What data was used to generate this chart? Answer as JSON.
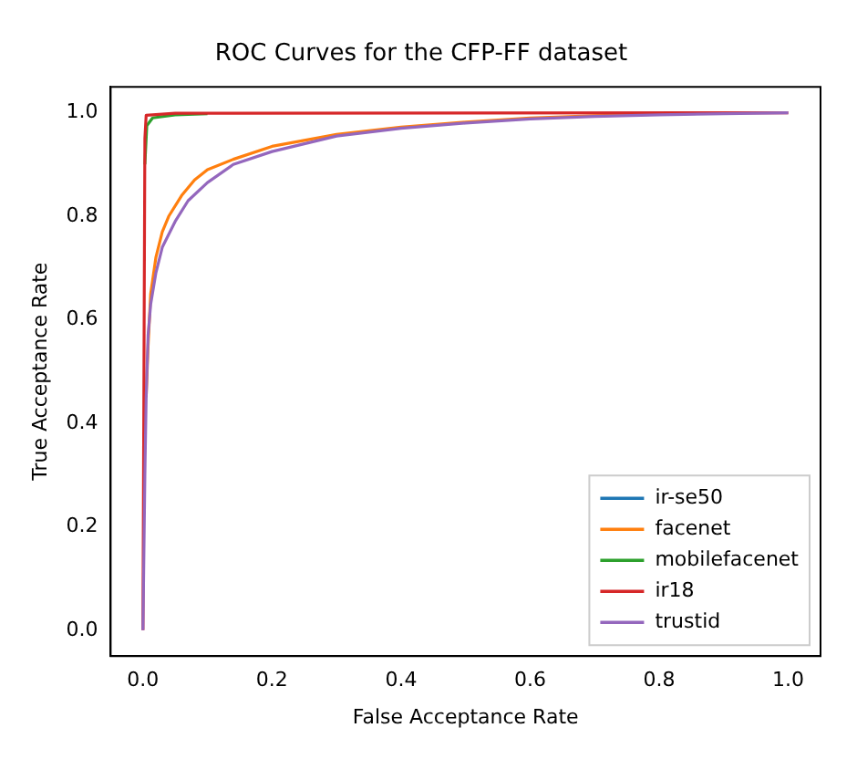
{
  "chart_data": {
    "type": "line",
    "title": "ROC Curves for the CFP-FF dataset",
    "xlabel": "False Acceptance Rate",
    "ylabel": "True Acceptance Rate",
    "xlim": [
      -0.05,
      1.05
    ],
    "ylim": [
      -0.05,
      1.05
    ],
    "xticks": [
      {
        "value": 0,
        "label": "0.0"
      },
      0.2,
      0.4,
      0.6,
      0.8,
      {
        "value": 1,
        "label": "1.0"
      }
    ],
    "yticks": [
      {
        "value": 0,
        "label": "0.0"
      },
      0.2,
      0.4,
      0.6,
      0.8,
      {
        "value": 1,
        "label": "1.0"
      }
    ],
    "grid": false,
    "legend": "bottom right",
    "marker": "none",
    "line_style": "solid",
    "series": [
      {
        "name": "ir-se50",
        "color": "#1f77b4"
      },
      {
        "name": "facenet",
        "color": "#ff7f0e",
        "x": [
          0.005,
          0.008,
          0.012,
          0.02,
          0.03,
          0.04,
          0.06,
          0.08,
          0.1,
          0.14,
          0.2,
          0.3,
          0.4,
          0.5,
          0.6,
          0.7,
          0.8
        ],
        "values": [
          0.45,
          0.55,
          0.65,
          0.72,
          0.77,
          0.8,
          0.84,
          0.87,
          0.89,
          0.91,
          0.935,
          0.958,
          0.972,
          0.982,
          0.99,
          0.994,
          0.997
        ]
      },
      {
        "name": "mobilefacenet",
        "color": "#2ca02c",
        "x": [
          0.003,
          0.006,
          0.015,
          0.05,
          0.1
        ],
        "values": [
          0.9,
          0.975,
          0.99,
          0.996,
          0.998
        ]
      },
      {
        "name": "ir18",
        "color": "#d62728",
        "x": [
          0,
          0.003,
          0.005,
          0.05,
          1
        ],
        "values": [
          0,
          0.95,
          0.995,
          0.999,
          1
        ]
      },
      {
        "name": "trustid",
        "color": "#9467bd",
        "x": [
          0,
          0.003,
          0.005,
          0.008,
          0.012,
          0.02,
          0.03,
          0.05,
          0.07,
          0.1,
          0.14,
          0.2,
          0.3,
          0.4,
          0.5,
          0.6,
          0.7,
          0.8,
          0.9,
          1
        ],
        "values": [
          0,
          0.3,
          0.45,
          0.57,
          0.63,
          0.69,
          0.74,
          0.79,
          0.83,
          0.865,
          0.9,
          0.925,
          0.955,
          0.97,
          0.98,
          0.988,
          0.993,
          0.996,
          0.998,
          1
        ]
      }
    ]
  }
}
